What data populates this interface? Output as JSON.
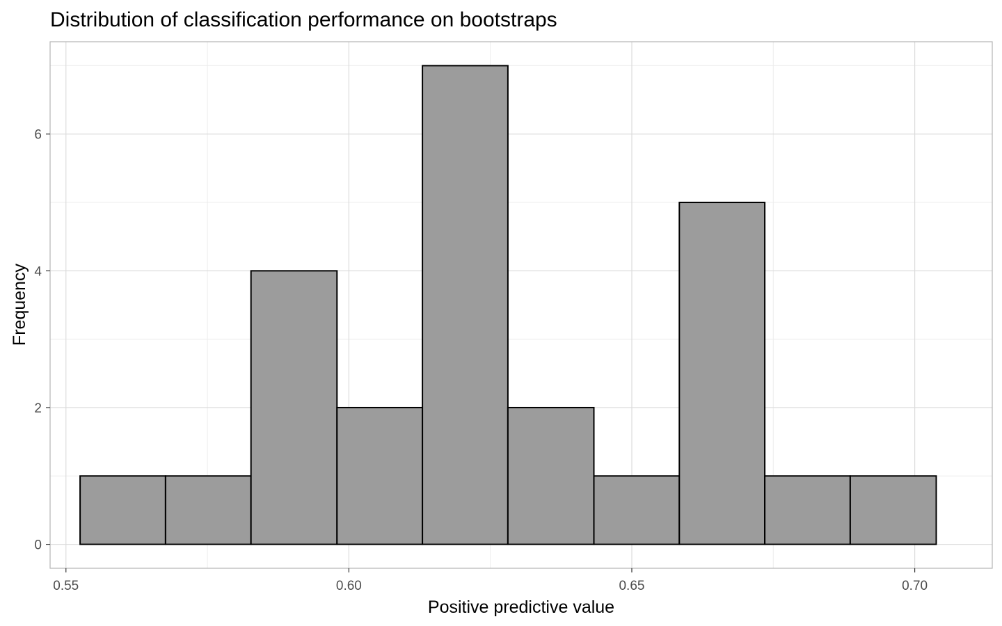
{
  "chart_data": {
    "type": "bar",
    "title": "Distribution of classification performance on bootstraps",
    "xlabel": "Positive predictive value",
    "ylabel": "Frequency",
    "bins": [
      {
        "x0": 0.5525,
        "x1": 0.5676,
        "count": 1
      },
      {
        "x0": 0.5676,
        "x1": 0.5827,
        "count": 1
      },
      {
        "x0": 0.5827,
        "x1": 0.5979,
        "count": 4
      },
      {
        "x0": 0.5979,
        "x1": 0.613,
        "count": 2
      },
      {
        "x0": 0.613,
        "x1": 0.6281,
        "count": 7
      },
      {
        "x0": 0.6281,
        "x1": 0.6433,
        "count": 2
      },
      {
        "x0": 0.6433,
        "x1": 0.6584,
        "count": 1
      },
      {
        "x0": 0.6584,
        "x1": 0.6735,
        "count": 5
      },
      {
        "x0": 0.6735,
        "x1": 0.6886,
        "count": 1
      },
      {
        "x0": 0.6886,
        "x1": 0.7038,
        "count": 1
      }
    ],
    "xlim": [
      0.5472,
      0.7137
    ],
    "ylim": [
      -0.35,
      7.35
    ],
    "x_ticks": [
      0.55,
      0.6,
      0.65,
      0.7
    ],
    "x_tick_labels": [
      "0.55",
      "0.60",
      "0.65",
      "0.70"
    ],
    "y_ticks": [
      0,
      2,
      4,
      6
    ],
    "y_tick_labels": [
      "0",
      "2",
      "4",
      "6"
    ],
    "x_minor_ticks": [
      0.575,
      0.625,
      0.675
    ],
    "y_minor_ticks": [
      1,
      3,
      5,
      7
    ],
    "grid": true,
    "colors": {
      "bar_fill": "#9c9c9c",
      "bar_stroke": "#000000",
      "grid_major": "#dcdcdc",
      "grid_minor": "#ececec",
      "panel_border": "#b3b3b3"
    }
  }
}
